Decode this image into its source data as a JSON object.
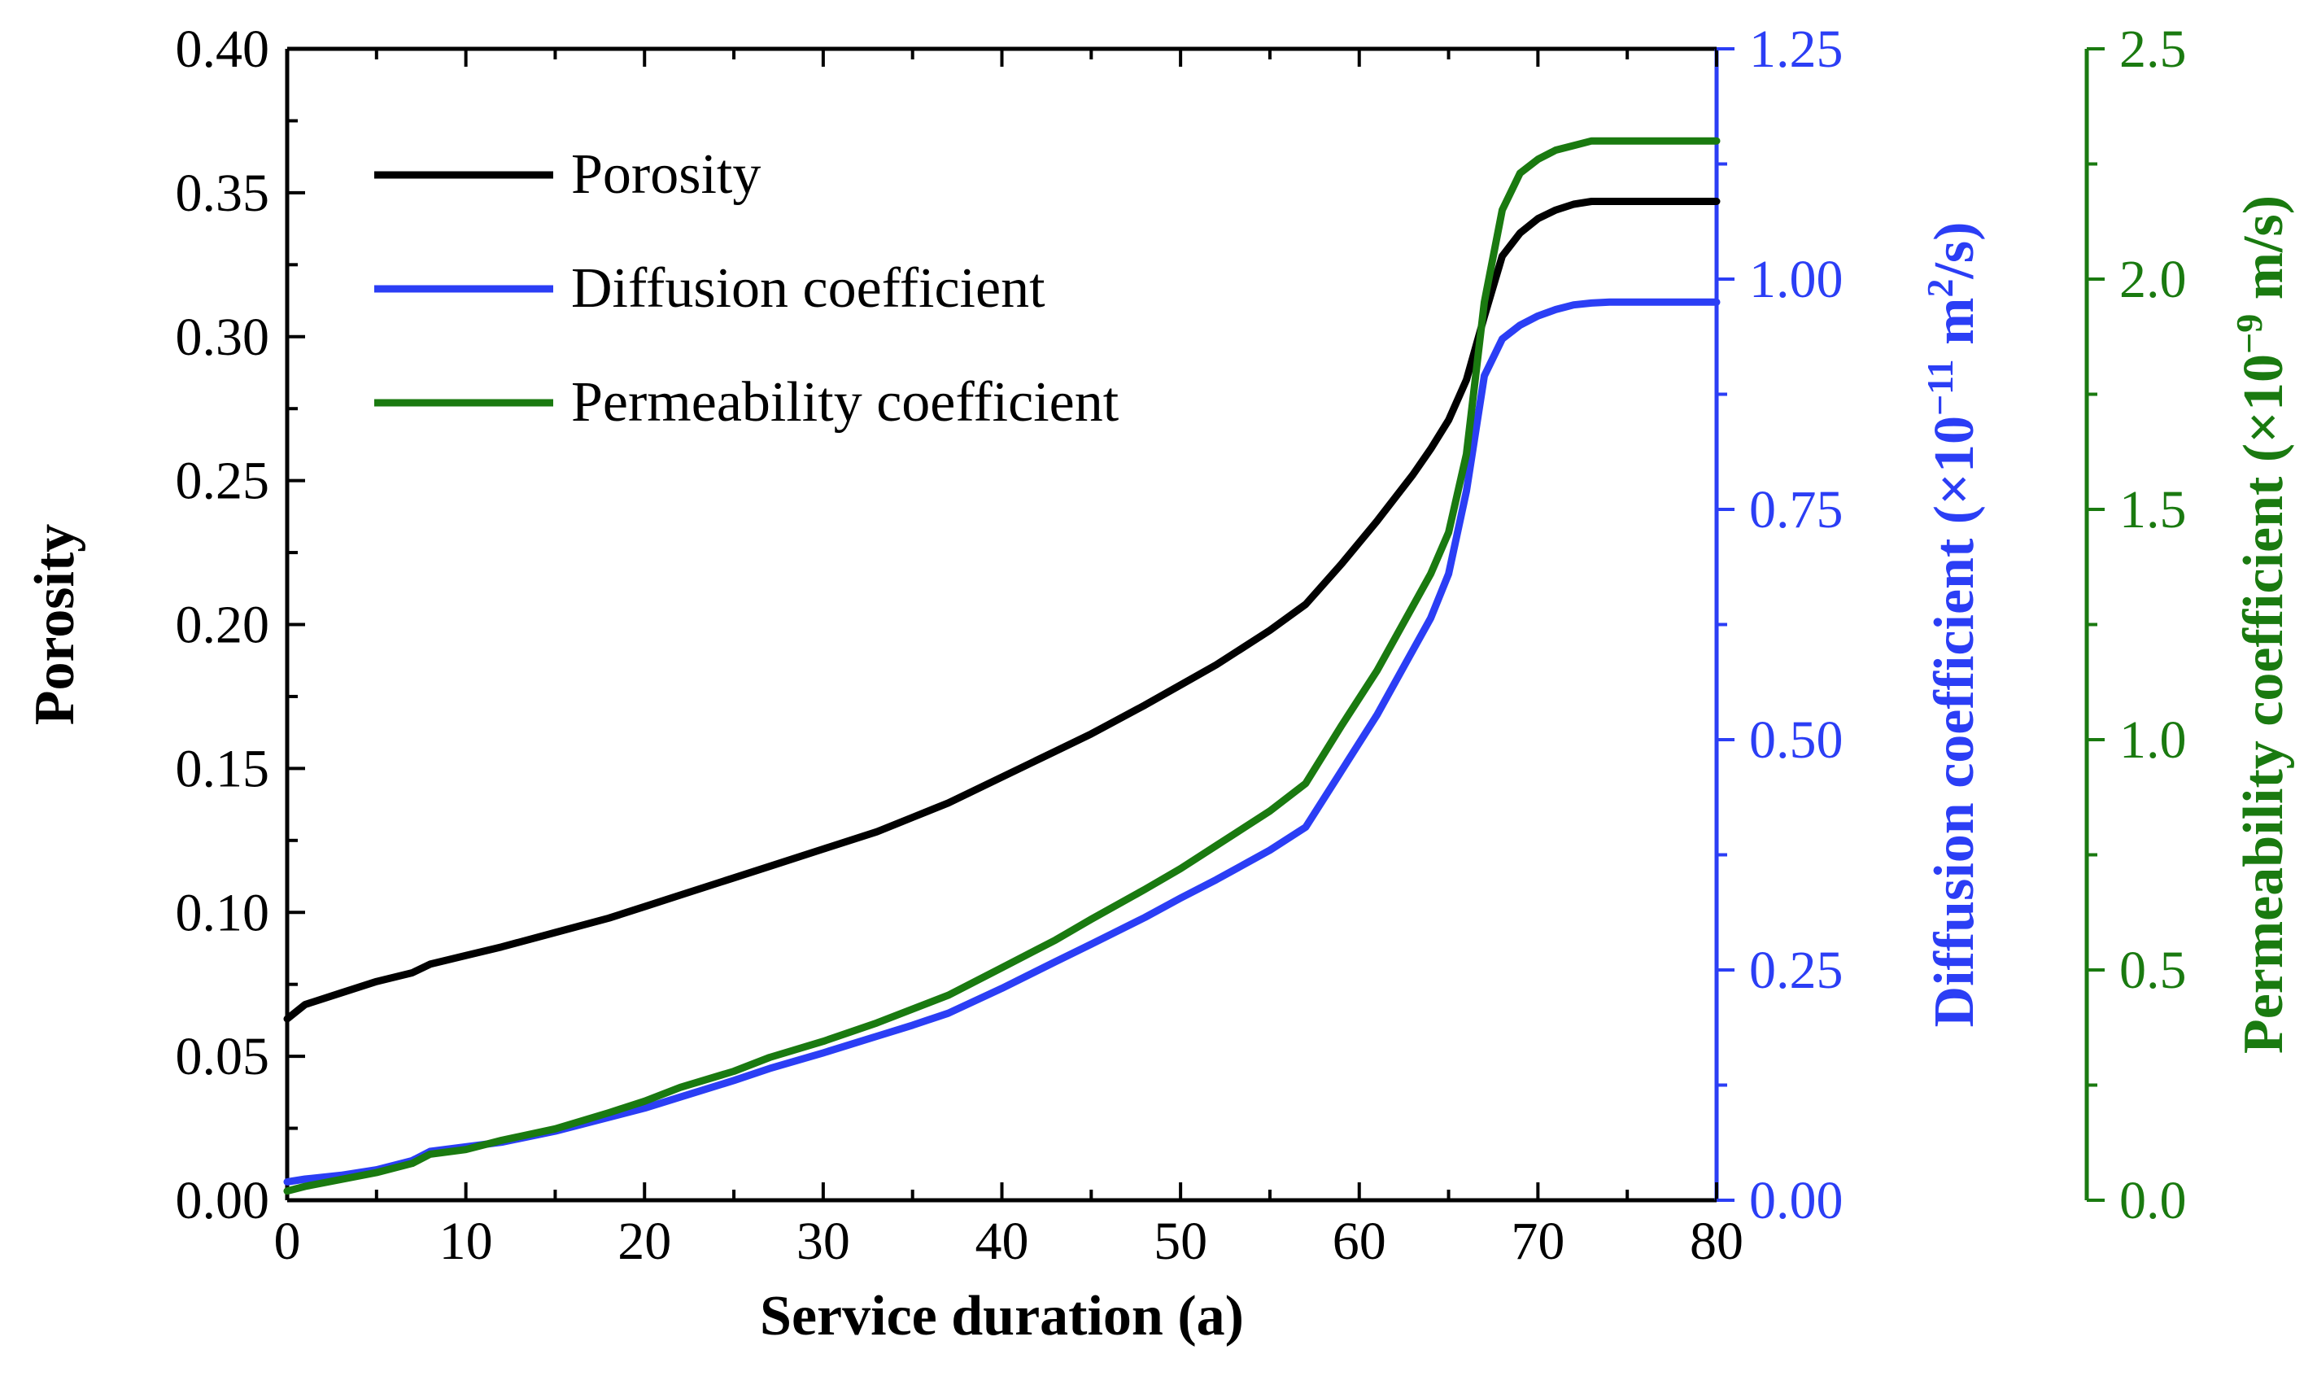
{
  "chart_data": {
    "type": "line",
    "title": "",
    "x": [
      0,
      1,
      3,
      5,
      7,
      8,
      10,
      12,
      15,
      18,
      20,
      22,
      25,
      27,
      30,
      33,
      35,
      37,
      40,
      43,
      45,
      48,
      50,
      52,
      55,
      57,
      59,
      61,
      63,
      64,
      65,
      66,
      67,
      68,
      69,
      70,
      71,
      72,
      73,
      74,
      75,
      78,
      80
    ],
    "xlabel": "Service duration (a)",
    "xlim": [
      0,
      80
    ],
    "xticks": [
      0,
      10,
      20,
      30,
      40,
      50,
      60,
      70,
      80
    ],
    "xtick_labels": [
      "0",
      "10",
      "20",
      "30",
      "40",
      "50",
      "60",
      "70",
      "80"
    ],
    "axes": {
      "left": {
        "label": "Porosity",
        "ylim": [
          0,
          0.4
        ],
        "ticks": [
          0,
          0.05,
          0.1,
          0.15,
          0.2,
          0.25,
          0.3,
          0.35,
          0.4
        ],
        "tick_labels": [
          "0.00",
          "0.05",
          "0.10",
          "0.15",
          "0.20",
          "0.25",
          "0.30",
          "0.35",
          "0.40"
        ],
        "color": "#000000"
      },
      "right1": {
        "label_main": "Diffusion coefficient (×10",
        "label_exp": "−11",
        "label_unit": " m",
        "label_unit_exp": "2",
        "label_end": "/s)",
        "ylim": [
          0,
          1.25
        ],
        "ticks": [
          0,
          0.25,
          0.5,
          0.75,
          1.0,
          1.25
        ],
        "tick_labels": [
          "0.00",
          "0.25",
          "0.50",
          "0.75",
          "1.00",
          "1.25"
        ],
        "color": "#2b3ef5"
      },
      "right2": {
        "label_main": "Permeability coefficient (×10",
        "label_exp": "−9",
        "label_end": " m/s)",
        "ylim": [
          0,
          2.5
        ],
        "ticks": [
          0,
          0.5,
          1.0,
          1.5,
          2.0,
          2.5
        ],
        "tick_labels": [
          "0.0",
          "0.5",
          "1.0",
          "1.5",
          "2.0",
          "2.5"
        ],
        "color": "#1a7a10"
      }
    },
    "series": [
      {
        "name": "Porosity",
        "axis": "left",
        "color": "#000000",
        "values": [
          0.063,
          0.068,
          0.072,
          0.076,
          0.079,
          0.082,
          0.085,
          0.088,
          0.093,
          0.098,
          0.102,
          0.106,
          0.112,
          0.116,
          0.122,
          0.128,
          0.133,
          0.138,
          0.147,
          0.156,
          0.162,
          0.172,
          0.179,
          0.186,
          0.198,
          0.207,
          0.221,
          0.236,
          0.252,
          0.261,
          0.271,
          0.285,
          0.307,
          0.328,
          0.336,
          0.341,
          0.344,
          0.346,
          0.347,
          0.347,
          0.347,
          0.347,
          0.347
        ]
      },
      {
        "name": "Diffusion coefficient",
        "axis": "right1",
        "color": "#2b3ef5",
        "values": [
          0.02,
          0.023,
          0.027,
          0.033,
          0.043,
          0.053,
          0.058,
          0.063,
          0.075,
          0.09,
          0.1,
          0.112,
          0.13,
          0.143,
          0.16,
          0.178,
          0.19,
          0.203,
          0.23,
          0.259,
          0.278,
          0.307,
          0.328,
          0.348,
          0.38,
          0.405,
          0.466,
          0.527,
          0.597,
          0.632,
          0.68,
          0.77,
          0.895,
          0.935,
          0.95,
          0.96,
          0.967,
          0.972,
          0.974,
          0.975,
          0.975,
          0.975,
          0.975
        ]
      },
      {
        "name": "Permeability coefficient",
        "axis": "right2",
        "color": "#1a7a10",
        "values": [
          0.02,
          0.03,
          0.045,
          0.06,
          0.08,
          0.1,
          0.11,
          0.13,
          0.155,
          0.19,
          0.215,
          0.245,
          0.28,
          0.31,
          0.345,
          0.385,
          0.415,
          0.445,
          0.505,
          0.565,
          0.61,
          0.675,
          0.72,
          0.77,
          0.845,
          0.905,
          1.03,
          1.15,
          1.29,
          1.36,
          1.45,
          1.62,
          1.95,
          2.15,
          2.23,
          2.26,
          2.28,
          2.29,
          2.3,
          2.3,
          2.3,
          2.3,
          2.3
        ]
      }
    ],
    "legend": {
      "position": "top-left",
      "entries": [
        "Porosity",
        "Diffusion coefficient",
        "Permeability coefficient"
      ]
    },
    "grid": false
  }
}
